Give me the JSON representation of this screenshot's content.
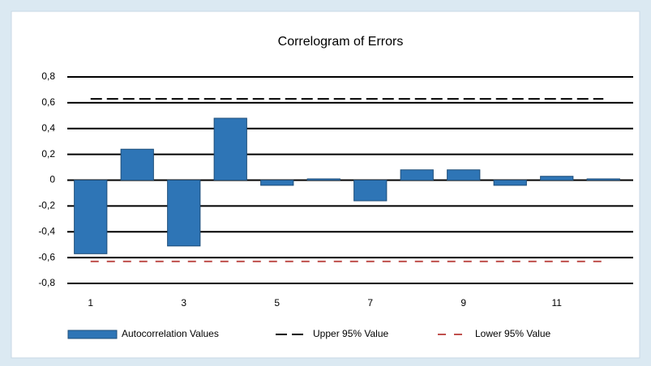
{
  "chart_data": {
    "type": "bar",
    "title": "Correlogram of Errors",
    "categories": [
      "1",
      null,
      "3",
      null,
      "5",
      null,
      "7",
      null,
      "9",
      null,
      "11",
      null
    ],
    "series": [
      {
        "name": "Autocorrelation Values",
        "color": "#2e75b6",
        "values": [
          -0.57,
          0.24,
          -0.51,
          0.48,
          -0.04,
          0.01,
          -0.16,
          0.08,
          0.08,
          -0.04,
          0.03,
          0.01
        ]
      },
      {
        "name": "Upper 95% Value",
        "color": "#000000",
        "type": "line",
        "values": [
          0.63,
          0.63,
          0.63,
          0.63,
          0.63,
          0.63,
          0.63,
          0.63,
          0.63,
          0.63,
          0.63,
          0.63
        ]
      },
      {
        "name": "Lower 95% Value",
        "color": "#c0504d",
        "type": "line",
        "values": [
          -0.63,
          -0.63,
          -0.63,
          -0.63,
          -0.63,
          -0.63,
          -0.63,
          -0.63,
          -0.63,
          -0.63,
          -0.63,
          -0.63
        ]
      }
    ],
    "ylim": [
      -0.8,
      0.8
    ],
    "yticks": [
      {
        "value": -0.8,
        "label": "-0,8"
      },
      {
        "value": -0.6,
        "label": "-0,6"
      },
      {
        "value": -0.4,
        "label": "-0,4"
      },
      {
        "value": -0.2,
        "label": "-0,2"
      },
      0,
      {
        "value": 0.2,
        "label": "0,2"
      },
      {
        "value": 0.4,
        "label": "0,4"
      },
      {
        "value": 0.6,
        "label": "0,6"
      },
      {
        "value": 0.8,
        "label": "0,8"
      }
    ],
    "grid": true
  }
}
